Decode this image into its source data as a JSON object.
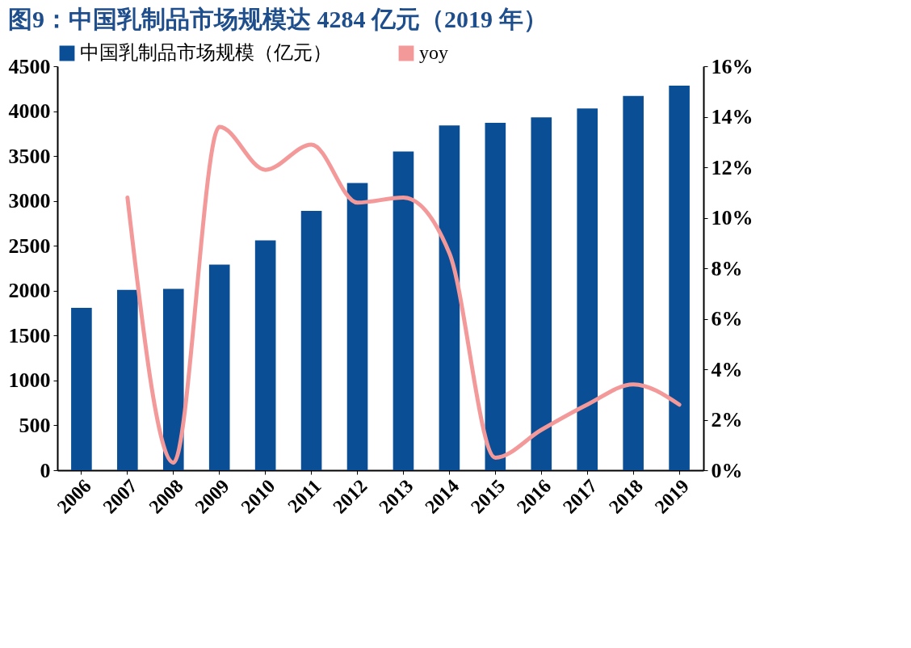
{
  "chart_data": {
    "type": "bar",
    "title": "图9：中国乳制品市场规模达 4284 亿元（2019 年）",
    "categories": [
      "2006",
      "2007",
      "2008",
      "2009",
      "2010",
      "2011",
      "2012",
      "2013",
      "2014",
      "2015",
      "2016",
      "2017",
      "2018",
      "2019"
    ],
    "series": [
      {
        "name": "中国乳制品市场规模（亿元）",
        "color": "#0a4f96",
        "values": [
          1810,
          2010,
          2020,
          2290,
          2560,
          2890,
          3200,
          3550,
          3840,
          3870,
          3930,
          4030,
          4170,
          4284
        ]
      },
      {
        "name": "yoy",
        "type": "line",
        "axis": "y2",
        "color": "#f4999a",
        "values": [
          null,
          10.8,
          0.3,
          13.6,
          11.9,
          12.9,
          10.6,
          10.8,
          8.6,
          0.5,
          1.6,
          2.6,
          3.4,
          2.6
        ]
      }
    ],
    "ylim": [
      0,
      4500
    ],
    "yticks": [
      0,
      500,
      1000,
      1500,
      2000,
      2500,
      3000,
      3500,
      4000,
      4500
    ],
    "y2lim": [
      0,
      16
    ],
    "y2ticks": [
      {
        "value": 0,
        "label": "0%"
      },
      {
        "value": 2,
        "label": "2%"
      },
      {
        "value": 4,
        "label": "4%"
      },
      {
        "value": 6,
        "label": "6%"
      },
      {
        "value": 8,
        "label": "8%"
      },
      {
        "value": 10,
        "label": "10%"
      },
      {
        "value": 12,
        "label": "12%"
      },
      {
        "value": 14,
        "label": "14%"
      },
      {
        "value": 16,
        "label": "16%"
      }
    ],
    "legend": "top",
    "grid": false
  }
}
